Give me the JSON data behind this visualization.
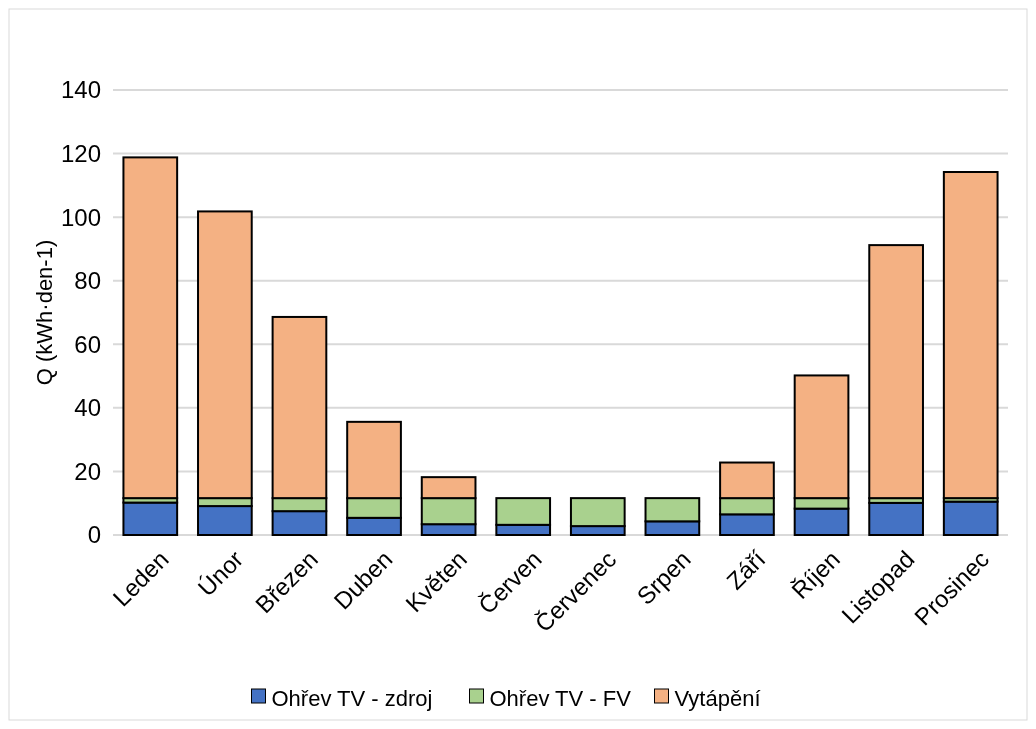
{
  "chart_data": {
    "type": "bar",
    "stacked": true,
    "ylabel": "Q (kWh·den-1)",
    "categories": [
      "Leden",
      "Únor",
      "Březen",
      "Duben",
      "Květen",
      "Červen",
      "Červenec",
      "Srpen",
      "Září",
      "Říjen",
      "Listopad",
      "Prosinec"
    ],
    "series": [
      {
        "name": "Ohřev TV - zdroj",
        "color": "#4472c4",
        "values": [
          10.2,
          9.1,
          7.5,
          5.4,
          3.4,
          3.2,
          2.8,
          4.3,
          6.5,
          8.3,
          10.1,
          10.5
        ]
      },
      {
        "name": "Ohřev TV - FV",
        "color": "#a9d18e",
        "values": [
          1.4,
          2.5,
          4.1,
          6.2,
          8.2,
          8.4,
          8.8,
          7.3,
          5.1,
          3.3,
          1.5,
          1.1
        ]
      },
      {
        "name": "Vytápění",
        "color": "#f4b183",
        "values": [
          107.2,
          90.2,
          57.0,
          24.0,
          6.6,
          0,
          0,
          0,
          11.2,
          38.6,
          79.6,
          102.6
        ]
      }
    ],
    "ylim": [
      0,
      140
    ],
    "yticks": [
      0,
      20,
      40,
      60,
      80,
      100,
      120,
      140
    ],
    "grid": "y",
    "legend": "bottom"
  }
}
